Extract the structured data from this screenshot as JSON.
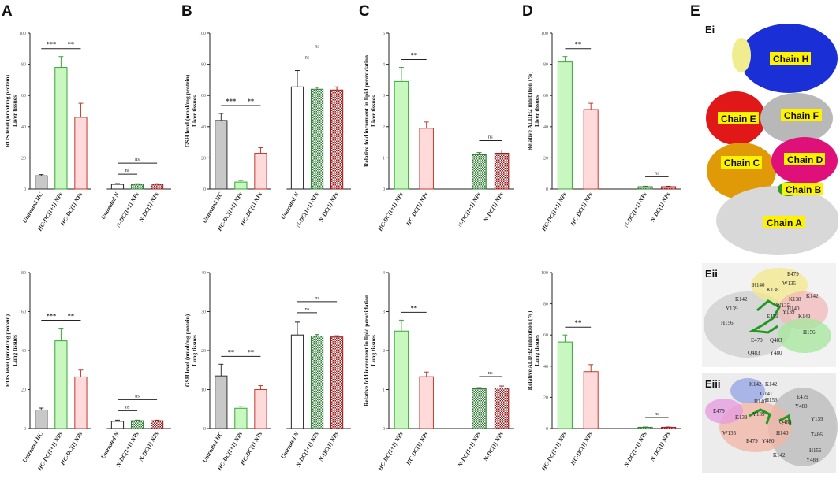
{
  "panel_letters": [
    "A",
    "B",
    "C",
    "D",
    "E"
  ],
  "colors": {
    "gray": "#c8c8c8",
    "green": "#c8f7c0",
    "green_edge": "#3aa53a",
    "pink": "#ffdada",
    "pink_edge": "#c0392b",
    "white": "#ffffff",
    "dark_green": "#2e7d32",
    "dark_red": "#9b1b1b",
    "black": "#222222"
  },
  "chart_data": [
    {
      "id": "A_liver",
      "type": "bar",
      "ylabel_lines": [
        "ROS level (nmol/mg protein)",
        "Liver tissues"
      ],
      "ylim": [
        0,
        100
      ],
      "yticks": [
        0,
        20,
        40,
        60,
        80,
        100
      ],
      "categories": [
        "Untreated HC",
        "HC-DC(1+1) NPs",
        "HC-DC(1) NPs",
        "Untreated N",
        "N-DC(1+1) NPs",
        "N-DC(1) NPs"
      ],
      "values": [
        8.5,
        78,
        46,
        3,
        3,
        3
      ],
      "errors": [
        0.8,
        7,
        9,
        0.5,
        0.4,
        0.4
      ],
      "styles": [
        "gray",
        "green",
        "pink",
        "white",
        "hatch_green",
        "hatch_red"
      ],
      "brackets": [
        {
          "from": 0,
          "to": 1,
          "label": "***"
        },
        {
          "from": 1,
          "to": 2,
          "label": "**"
        },
        {
          "from": 3,
          "to": 4,
          "label": "ns"
        },
        {
          "from": 3,
          "to": 5,
          "label": "ns"
        }
      ]
    },
    {
      "id": "B_liver",
      "type": "bar",
      "ylabel_lines": [
        "GSH level (nmol/mg protein)",
        "Liver tissues"
      ],
      "ylim": [
        0,
        100
      ],
      "yticks": [
        0,
        20,
        40,
        60,
        80,
        100
      ],
      "categories": [
        "Untreated HC",
        "HC-DC(1+1) NPs",
        "HC-DC(1) NPs",
        "Untreated N",
        "N-DC(1+1) NPs",
        "N-DC(1) NPs"
      ],
      "values": [
        44,
        4.5,
        23,
        65.5,
        64,
        63.5
      ],
      "errors": [
        4.5,
        1,
        3.5,
        10.5,
        1.2,
        2
      ],
      "styles": [
        "gray",
        "green",
        "pink",
        "white",
        "hatch_green",
        "hatch_red"
      ],
      "brackets": [
        {
          "from": 0,
          "to": 1,
          "label": "***"
        },
        {
          "from": 1,
          "to": 2,
          "label": "**"
        },
        {
          "from": 3,
          "to": 4,
          "label": "ns"
        },
        {
          "from": 3,
          "to": 5,
          "label": "ns"
        }
      ]
    },
    {
      "id": "C_liver",
      "type": "bar",
      "ylabel_lines": [
        "Relative fold increment in lipid peroxidation",
        "Liver tissues"
      ],
      "ylim": [
        0,
        5
      ],
      "yticks": [
        0,
        1,
        2,
        3,
        4,
        5
      ],
      "categories": [
        "HC-DC(1+1) NPs",
        "HC-DC(1) NPs",
        "N-DC(1+1) NPs",
        "N-DC(1) NPs"
      ],
      "values": [
        3.45,
        1.95,
        1.1,
        1.15
      ],
      "errors": [
        0.45,
        0.2,
        0.07,
        0.1
      ],
      "styles": [
        "green",
        "pink",
        "hatch_green",
        "hatch_red"
      ],
      "brackets": [
        {
          "from": 0,
          "to": 1,
          "label": "**"
        },
        {
          "from": 2,
          "to": 3,
          "label": "ns"
        }
      ]
    },
    {
      "id": "D_liver",
      "type": "bar",
      "ylabel_lines": [
        "Relative ALDH2 inhibition (%)",
        "Liver tissues"
      ],
      "ylim": [
        0,
        100
      ],
      "yticks": [
        0,
        20,
        40,
        60,
        80,
        100
      ],
      "categories": [
        "HC-DC(1+1) NPs",
        "HC-DC(1) NPs",
        "N-DC(1+1) NPs",
        "N-DC(1) NPs"
      ],
      "values": [
        81.5,
        51,
        1.5,
        1.5
      ],
      "errors": [
        3.5,
        4,
        0.3,
        0.3
      ],
      "styles": [
        "green",
        "pink",
        "hatch_green",
        "hatch_red"
      ],
      "brackets": [
        {
          "from": 0,
          "to": 1,
          "label": "**"
        },
        {
          "from": 2,
          "to": 3,
          "label": "ns"
        }
      ]
    },
    {
      "id": "A_lung",
      "type": "bar",
      "ylabel_lines": [
        "ROS level (nmol/mg protein)",
        "Lung tissues"
      ],
      "ylim": [
        0,
        80
      ],
      "yticks": [
        0,
        20,
        40,
        60,
        80
      ],
      "categories": [
        "Untreated HC",
        "HC-DC(1+1) NPs",
        "HC-DC(1) NPs",
        "Untreated N",
        "N-DC(1+1) NPs",
        "N-DC(1) NPs"
      ],
      "values": [
        9.5,
        45,
        26.5,
        3.7,
        4,
        4
      ],
      "errors": [
        1,
        6.5,
        3.5,
        0.6,
        0.3,
        0.3
      ],
      "styles": [
        "gray",
        "green",
        "pink",
        "white",
        "hatch_green",
        "hatch_red"
      ],
      "brackets": [
        {
          "from": 0,
          "to": 1,
          "label": "***"
        },
        {
          "from": 1,
          "to": 2,
          "label": "**"
        },
        {
          "from": 3,
          "to": 4,
          "label": "ns"
        },
        {
          "from": 3,
          "to": 5,
          "label": "ns"
        }
      ]
    },
    {
      "id": "B_lung",
      "type": "bar",
      "ylabel_lines": [
        "GSH level (nmol/mg protein)",
        "Lung tissues"
      ],
      "ylim": [
        0,
        40
      ],
      "yticks": [
        0,
        10,
        20,
        30,
        40
      ],
      "categories": [
        "Untreated HC",
        "HC-DC(1+1) NPs",
        "HC-DC(1) NPs",
        "Untreated N",
        "N-DC(1+1) NPs",
        "N-DC(1) NPs"
      ],
      "values": [
        13.5,
        5.2,
        10,
        24,
        23.7,
        23.5
      ],
      "errors": [
        3,
        0.5,
        1,
        3.3,
        0.4,
        0.3
      ],
      "styles": [
        "gray",
        "green",
        "pink",
        "white",
        "hatch_green",
        "hatch_red"
      ],
      "brackets": [
        {
          "from": 0,
          "to": 1,
          "label": "**"
        },
        {
          "from": 1,
          "to": 2,
          "label": "**"
        },
        {
          "from": 3,
          "to": 4,
          "label": "ns"
        },
        {
          "from": 3,
          "to": 5,
          "label": "ns"
        }
      ]
    },
    {
      "id": "C_lung",
      "type": "bar",
      "ylabel_lines": [
        "Relative fold increment in lipid peroxidation",
        "Lung tissues"
      ],
      "ylim": [
        0,
        4
      ],
      "yticks": [
        0,
        1,
        2,
        3,
        4
      ],
      "categories": [
        "HC-DC(1+1) NPs",
        "HC-DC(1) NPs",
        "N-DC(1+1) NPs",
        "N-DC(1) NPs"
      ],
      "values": [
        2.5,
        1.33,
        1.02,
        1.04
      ],
      "errors": [
        0.28,
        0.12,
        0.03,
        0.05
      ],
      "styles": [
        "green",
        "pink",
        "hatch_green",
        "hatch_red"
      ],
      "brackets": [
        {
          "from": 0,
          "to": 1,
          "label": "**"
        },
        {
          "from": 2,
          "to": 3,
          "label": "ns"
        }
      ]
    },
    {
      "id": "D_lung",
      "type": "bar",
      "ylabel_lines": [
        "Relative ALDH2 inhibition (%)",
        "Lung tissues"
      ],
      "ylim": [
        0,
        100
      ],
      "yticks": [
        0,
        20,
        40,
        60,
        80,
        100
      ],
      "categories": [
        "HC-DC(1+1) NPs",
        "HC-DC(1) NPs",
        "N-DC(1+1) NPs",
        "N-DC(1) NPs"
      ],
      "values": [
        55.5,
        36.5,
        0.8,
        0.8
      ],
      "errors": [
        4.5,
        4.5,
        0.2,
        0.2
      ],
      "styles": [
        "green",
        "pink",
        "hatch_green",
        "hatch_red"
      ],
      "brackets": [
        {
          "from": 0,
          "to": 1,
          "label": "**"
        },
        {
          "from": 2,
          "to": 3,
          "label": "ns"
        }
      ]
    }
  ],
  "structure": {
    "sub_labels": [
      "Ei",
      "Eii",
      "Eiii"
    ],
    "chains": [
      "Chain H",
      "Chain E",
      "Chain F",
      "Chain C",
      "Chain D",
      "Chain B",
      "Chain A"
    ],
    "eii_residues": [
      "E479",
      "H140",
      "W135",
      "K138",
      "K142",
      "K138",
      "K142",
      "H140",
      "W135",
      "Y139",
      "Y139",
      "E479",
      "K142",
      "H156",
      "E479",
      "Q483",
      "H156",
      "Q483",
      "Y480"
    ],
    "eiii_residues": [
      "K142",
      "K142",
      "G141",
      "H140",
      "H156",
      "E479",
      "Y480",
      "E479",
      "K138",
      "Y139",
      "Q483",
      "Y139",
      "W135",
      "H140",
      "T486",
      "E479",
      "Y480",
      "H156",
      "K142",
      "Y488"
    ]
  }
}
